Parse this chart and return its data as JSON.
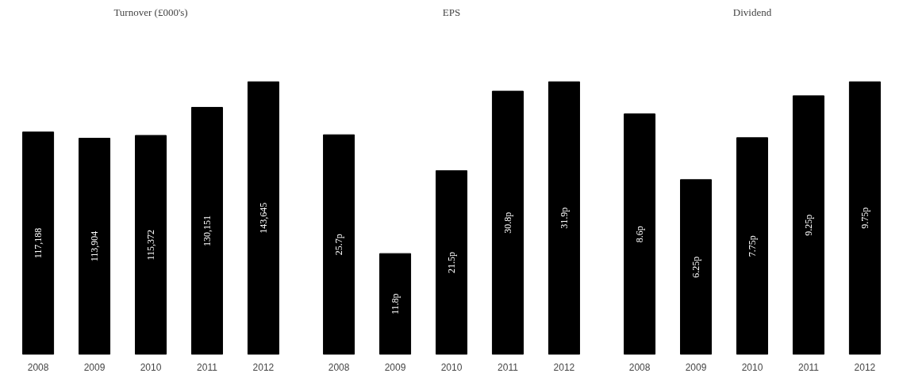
{
  "chart_data": [
    {
      "type": "bar",
      "title": "Turnover (£000's)",
      "categories": [
        "2008",
        "2009",
        "2010",
        "2011",
        "2012"
      ],
      "values": [
        117188,
        113904,
        115372,
        130151,
        143645
      ],
      "value_labels": [
        "117,188",
        "113,904",
        "115,372",
        "130,151",
        "143,645"
      ],
      "color": "#000000"
    },
    {
      "type": "bar",
      "title": "EPS",
      "categories": [
        "2008",
        "2009",
        "2010",
        "2011",
        "2012"
      ],
      "values": [
        25.7,
        11.8,
        21.5,
        30.8,
        31.9
      ],
      "value_labels": [
        "25.7p",
        "11.8p",
        "21.5p",
        "30.8p",
        "31.9p"
      ],
      "color": "#000000"
    },
    {
      "type": "bar",
      "title": "Dividend",
      "categories": [
        "2008",
        "2009",
        "2010",
        "2011",
        "2012"
      ],
      "values": [
        8.6,
        6.25,
        7.75,
        9.25,
        9.75
      ],
      "value_labels": [
        "8.6p",
        "6.25p",
        "7.75p",
        "9.25p",
        "9.75p"
      ],
      "color": "#000000"
    }
  ]
}
